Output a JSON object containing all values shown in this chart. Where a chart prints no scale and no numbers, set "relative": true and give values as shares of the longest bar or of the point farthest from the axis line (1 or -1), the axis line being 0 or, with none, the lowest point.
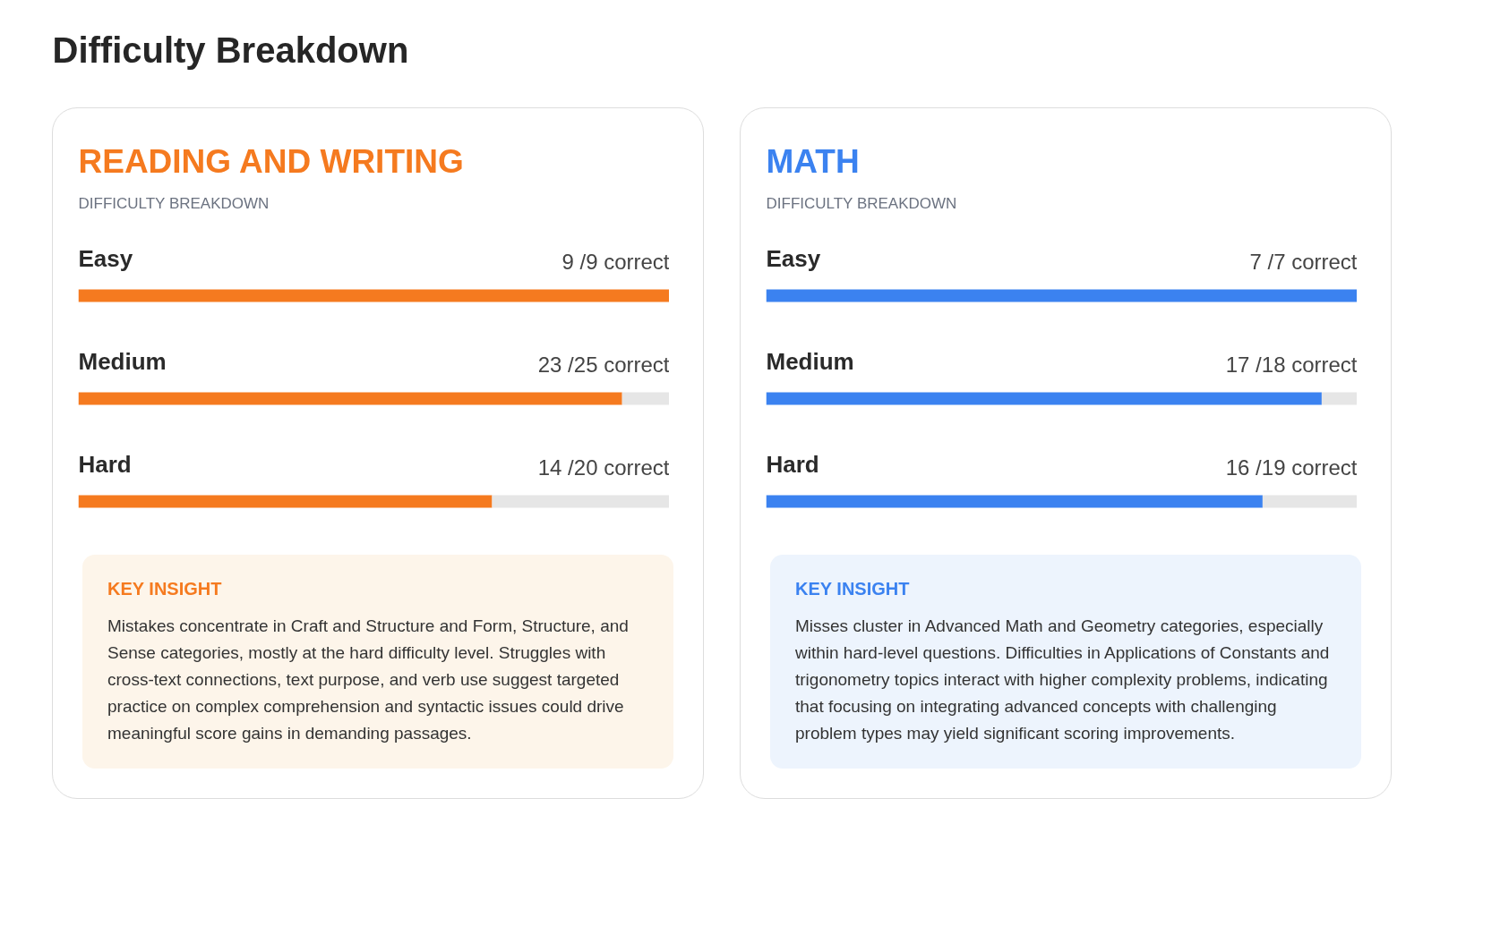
{
  "chart_data": [
    {
      "type": "other",
      "title": "Difficulty Breakdown"
    },
    {
      "type": "bar",
      "orientation": "horizontal",
      "stacked": true,
      "relative": true,
      "title": "READING AND WRITING",
      "subtitle": "DIFFICULTY BREAKDOWN",
      "categories": [
        "Easy",
        "Medium",
        "Hard"
      ],
      "series": [
        {
          "color": "#f57a1f",
          "values": [
            1,
            0.92,
            0.7
          ]
        },
        {
          "color": "#e6e6e6",
          "values": [
            0,
            0.08,
            0.3
          ]
        }
      ],
      "annotations": [
        "9 /9 correct",
        "23 /25 correct",
        "14 /20 correct",
        "KEY INSIGHT",
        "Mistakes concentrate in Craft and Structure and Form, Structure, and Sense categories, mostly at the hard difficulty level. Struggles with cross-text connections, text purpose, and verb use suggest targeted practice on complex comprehension and syntactic issues could drive meaningful score gains in demanding passages."
      ]
    },
    {
      "type": "bar",
      "orientation": "horizontal",
      "stacked": true,
      "relative": true,
      "title": "MATH",
      "subtitle": "DIFFICULTY BREAKDOWN",
      "categories": [
        "Easy",
        "Medium",
        "Hard"
      ],
      "series": [
        {
          "color": "#3b82f0",
          "values": [
            1,
            0.94,
            0.84
          ]
        },
        {
          "color": "#e6e6e6",
          "values": [
            0,
            0.06,
            0.16
          ]
        }
      ],
      "annotations": [
        "7 /7 correct",
        "17 /18 correct",
        "16 /19 correct",
        "KEY INSIGHT",
        "Misses cluster in Advanced Math and Geometry categories, especially within hard-level questions. Difficulties in Applications of Constants and trigonometry topics interact with higher complexity problems, indicating that focusing on integrating advanced concepts with challenging problem types may yield significant scoring improvements."
      ]
    }
  ]
}
